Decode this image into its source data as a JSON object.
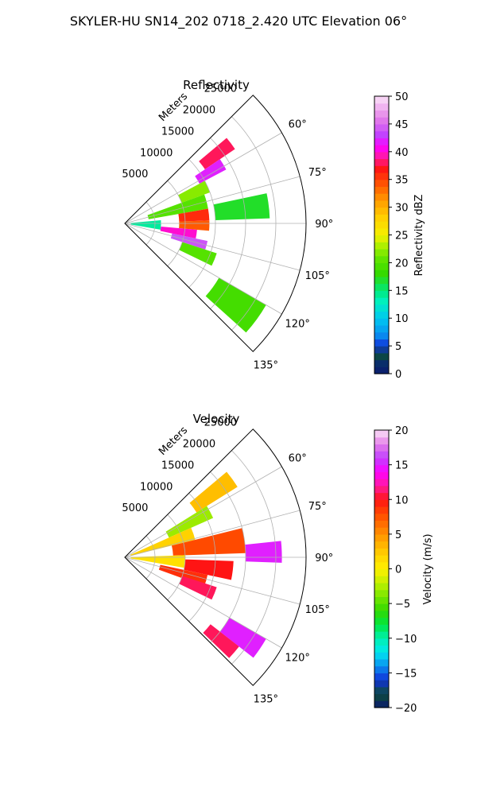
{
  "title": "SKYLER-HU  SN14_202  0718_2.420 UTC Elevation 06°",
  "chart_data": [
    {
      "type": "heatmap",
      "projection": "polar-sector",
      "title": "Reflectivity",
      "range_label": "Meters",
      "range_ticks": [
        5000,
        10000,
        15000,
        20000,
        25000
      ],
      "range_tick_labels": [
        "5000",
        "10000",
        "15000",
        "20000",
        "25000"
      ],
      "rmax": 30000,
      "azimuth_range": [
        45,
        135
      ],
      "azimuth_ticks": [
        60,
        75,
        90,
        105,
        120,
        135
      ],
      "azimuth_tick_labels": [
        "60°",
        "75°",
        "90°",
        "105°",
        "120°",
        "135°"
      ],
      "grid": true,
      "colorbar": {
        "label": "Reflectivity dBZ",
        "range": [
          0,
          50
        ],
        "ticks": [
          0,
          5,
          10,
          15,
          20,
          25,
          30,
          35,
          40,
          45,
          50
        ],
        "tick_labels": [
          "0",
          "5",
          "10",
          "15",
          "20",
          "25",
          "30",
          "35",
          "40",
          "45",
          "50"
        ]
      },
      "cells": [
        {
          "az": [
            50,
            56
          ],
          "r": [
            16000,
            22000
          ],
          "value": 38
        },
        {
          "az": [
            56,
            62
          ],
          "r": [
            14000,
            19000
          ],
          "value": 42
        },
        {
          "az": [
            62,
            70
          ],
          "r": [
            10000,
            15000
          ],
          "value": 22
        },
        {
          "az": [
            70,
            80
          ],
          "r": [
            4000,
            14000
          ],
          "value": 20
        },
        {
          "az": [
            80,
            88
          ],
          "r": [
            9000,
            14000
          ],
          "value": 36
        },
        {
          "az": [
            88,
            95
          ],
          "r": [
            9000,
            14000
          ],
          "value": 34
        },
        {
          "az": [
            95,
            102
          ],
          "r": [
            6000,
            12000
          ],
          "value": 40
        },
        {
          "az": [
            102,
            108
          ],
          "r": [
            8000,
            14000
          ],
          "value": 44
        },
        {
          "az": [
            85,
            100
          ],
          "r": [
            1000,
            6000
          ],
          "value": 14
        },
        {
          "az": [
            78,
            88
          ],
          "r": [
            15000,
            24000
          ],
          "value": 17
        },
        {
          "az": [
            108,
            116
          ],
          "r": [
            10000,
            16000
          ],
          "value": 20
        },
        {
          "az": [
            120,
            132
          ],
          "r": [
            18000,
            27000
          ],
          "value": 19
        }
      ]
    },
    {
      "type": "heatmap",
      "projection": "polar-sector",
      "title": "Velocity",
      "range_label": "Meters",
      "range_ticks": [
        5000,
        10000,
        15000,
        20000,
        25000
      ],
      "range_tick_labels": [
        "5000",
        "10000",
        "15000",
        "20000",
        "25000"
      ],
      "rmax": 30000,
      "azimuth_range": [
        45,
        135
      ],
      "azimuth_ticks": [
        60,
        75,
        90,
        105,
        120,
        135
      ],
      "azimuth_tick_labels": [
        "60°",
        "75°",
        "90°",
        "105°",
        "120°",
        "135°"
      ],
      "grid": true,
      "colorbar": {
        "label": "Velocity (m/s)",
        "range": [
          -20,
          20
        ],
        "ticks": [
          -20,
          -15,
          -10,
          -5,
          0,
          5,
          10,
          15,
          20
        ],
        "tick_labels": [
          "−20",
          "−15",
          "−10",
          "−5",
          "0",
          "5",
          "10",
          "15",
          "20"
        ]
      },
      "cells": [
        {
          "az": [
            50,
            58
          ],
          "r": [
            14000,
            22000
          ],
          "value": 3
        },
        {
          "az": [
            58,
            66
          ],
          "r": [
            8000,
            16000
          ],
          "value": -3
        },
        {
          "az": [
            66,
            76
          ],
          "r": [
            1000,
            12000
          ],
          "value": 2
        },
        {
          "az": [
            76,
            88
          ],
          "r": [
            8000,
            20000
          ],
          "value": 8
        },
        {
          "az": [
            84,
            92
          ],
          "r": [
            20000,
            26000
          ],
          "value": 15
        },
        {
          "az": [
            88,
            100
          ],
          "r": [
            1000,
            10000
          ],
          "value": 1
        },
        {
          "az": [
            92,
            102
          ],
          "r": [
            10000,
            18000
          ],
          "value": 10
        },
        {
          "az": [
            102,
            110
          ],
          "r": [
            6000,
            14000
          ],
          "value": 9
        },
        {
          "az": [
            108,
            116
          ],
          "r": [
            10000,
            16000
          ],
          "value": 11
        },
        {
          "az": [
            120,
            128
          ],
          "r": [
            20000,
            27000
          ],
          "value": 15
        },
        {
          "az": [
            128,
            134
          ],
          "r": [
            18000,
            24000
          ],
          "value": 11
        }
      ]
    }
  ]
}
